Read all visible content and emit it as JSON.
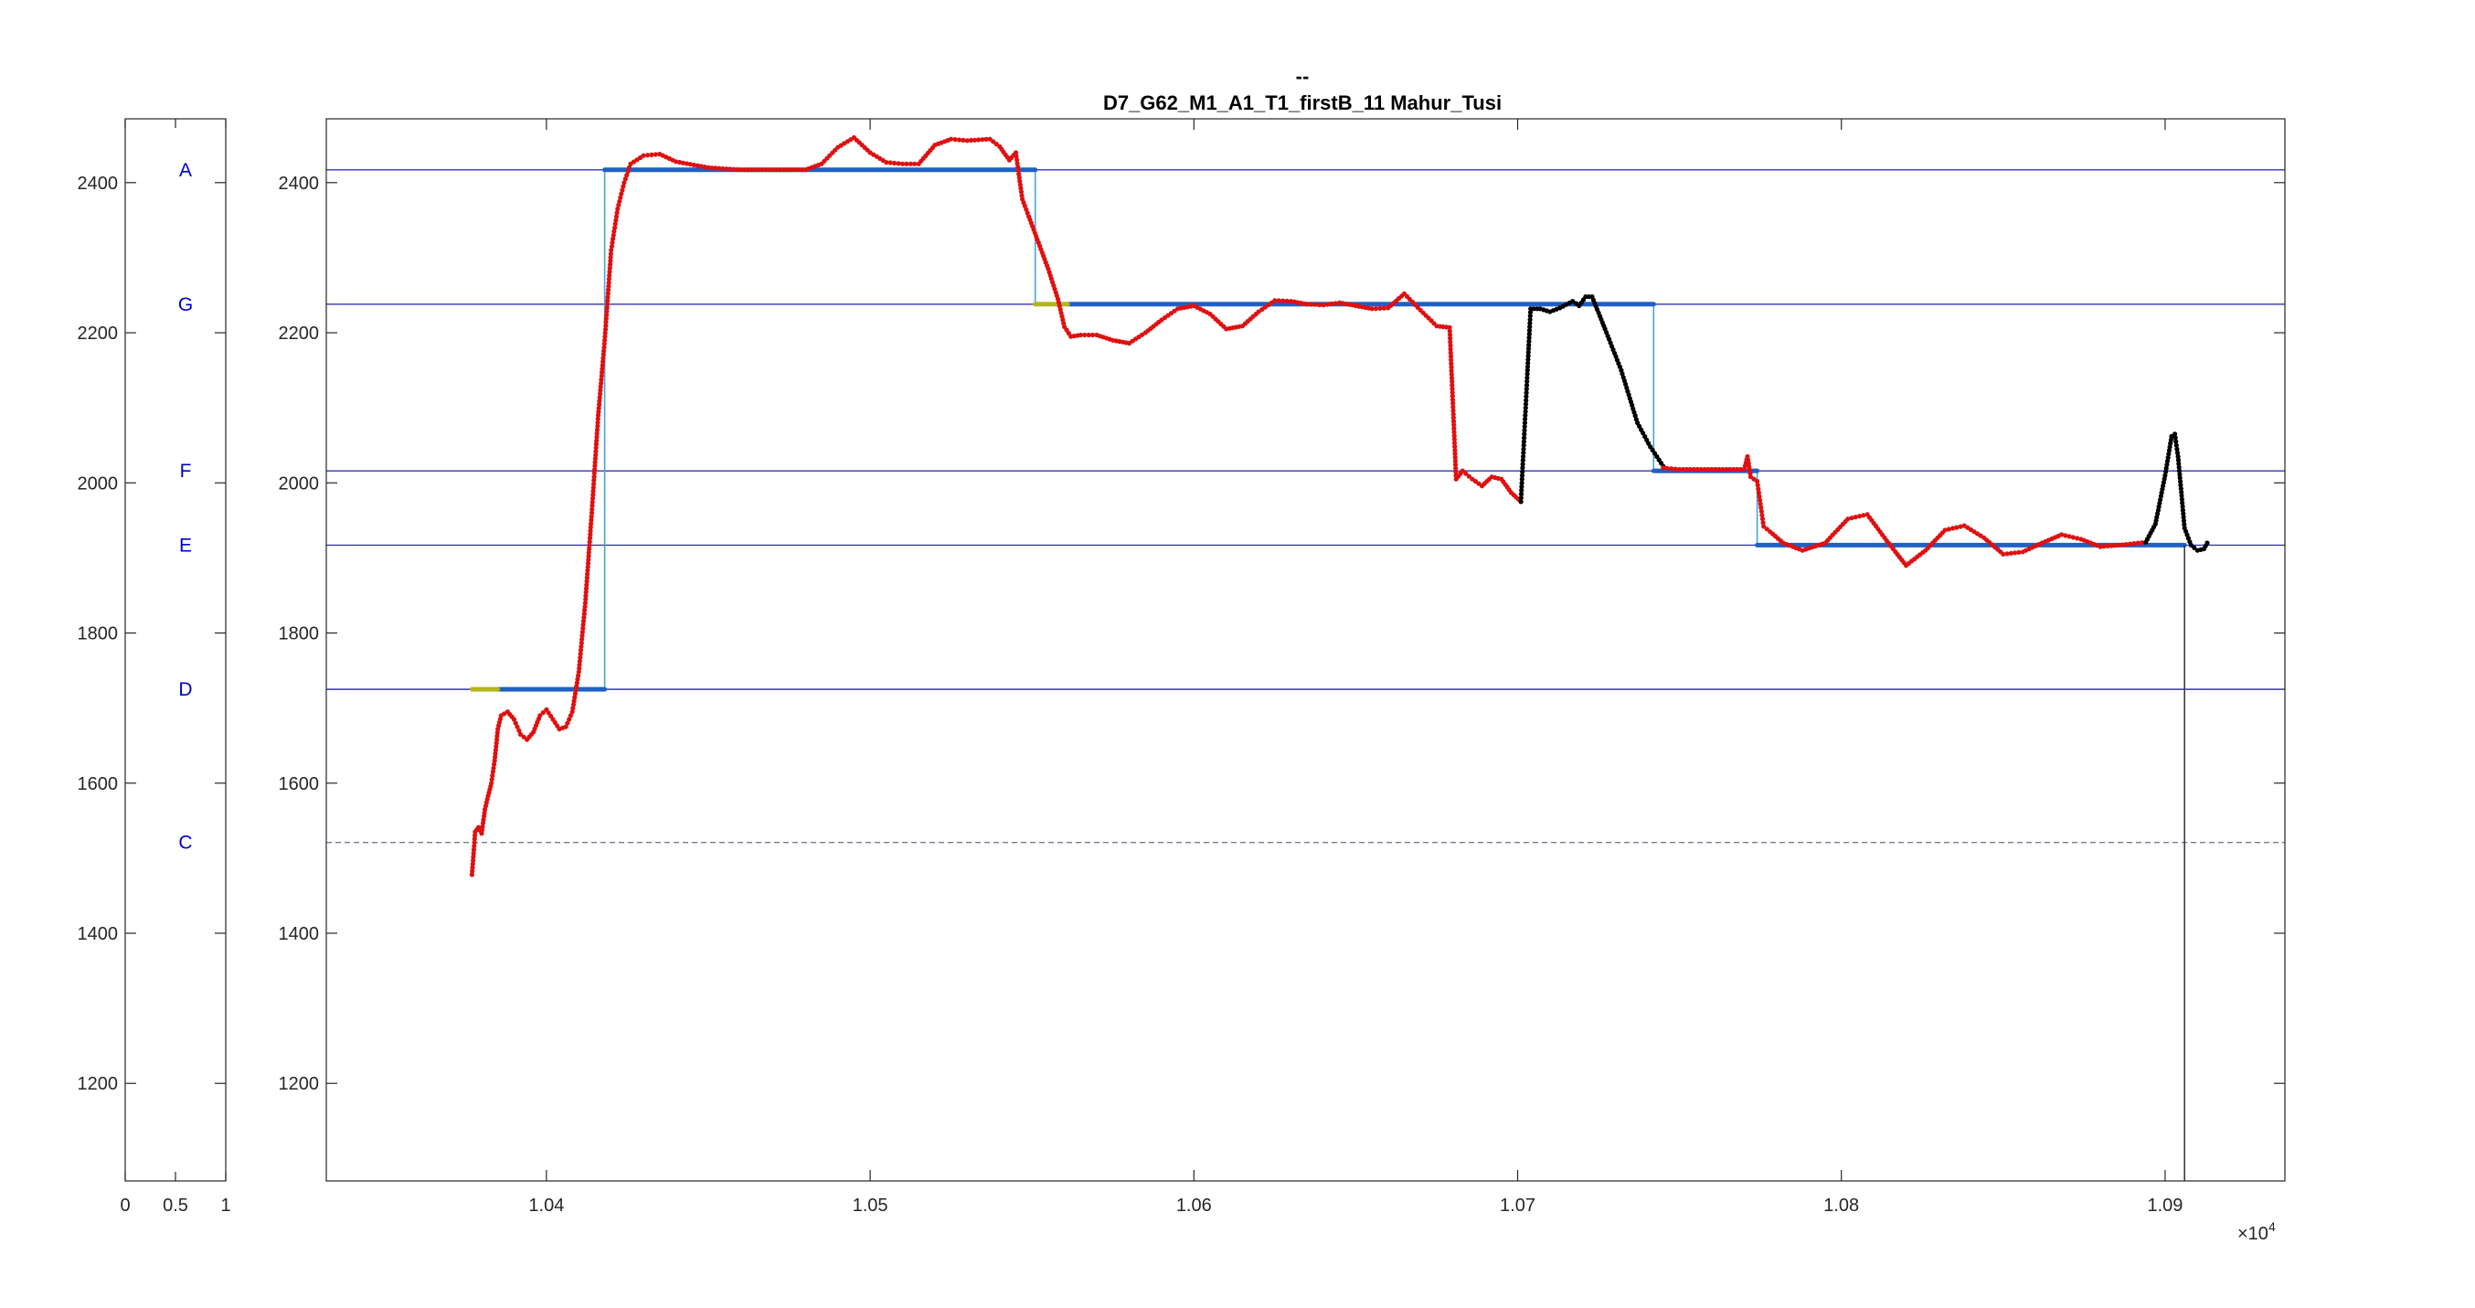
{
  "chart_data": {
    "type": "line",
    "title_line1": "--",
    "title_line2": "D7_G62_M1_A1_T1_firstB_11 Mahur_Tusi",
    "xlabel": "",
    "ylabel": "",
    "x_exponent_label": "×10",
    "x_exponent_power": "4",
    "xlim": [
      10332,
      10937
    ],
    "ylim": [
      1070,
      2485
    ],
    "xtick_labels": [
      "1.04",
      "1.05",
      "1.06",
      "1.07",
      "1.08",
      "1.09"
    ],
    "xtick_values": [
      10400,
      10500,
      10600,
      10700,
      10800,
      10900
    ],
    "ytick_labels": [
      "1200",
      "1400",
      "1600",
      "1800",
      "2000",
      "2200",
      "2400"
    ],
    "ytick_values": [
      1200,
      1400,
      1600,
      1800,
      2000,
      2200,
      2400
    ],
    "side_panel": {
      "xlim": [
        0,
        1
      ],
      "xtick_labels": [
        "0",
        "0.5",
        "1"
      ],
      "xtick_values": [
        0,
        0.5,
        1
      ]
    },
    "reference_lines": [
      {
        "note": "A",
        "y": 2417
      },
      {
        "note": "G",
        "y": 2238
      },
      {
        "note": "F",
        "y": 2016
      },
      {
        "note": "E",
        "y": 1917
      },
      {
        "note": "D",
        "y": 1725
      },
      {
        "note": "C",
        "y": 1521,
        "style": "dashed"
      }
    ],
    "grid": false,
    "legend": "none",
    "colors": {
      "reference": "#3333bb",
      "steps": "#1f60c4",
      "step_thin": "#4aa3d8",
      "step_alt": "#b5b51a",
      "pitch": "#e01010",
      "pitch_line": "#d07050",
      "pitch_unvoiced": "#000000"
    },
    "series": [
      {
        "role": "step",
        "color": "#4aa3d8",
        "values": [
          [
            10377,
            1725
          ],
          [
            10418,
            1725
          ],
          [
            10418,
            2417
          ],
          [
            10551,
            2417
          ],
          [
            10551,
            2238
          ],
          [
            10742,
            2238
          ],
          [
            10742,
            2016
          ],
          [
            10774,
            2016
          ],
          [
            10774,
            1917
          ],
          [
            10906,
            1917
          ],
          [
            10906,
            1070
          ]
        ]
      },
      {
        "role": "step-bold",
        "color": "#1f60c4",
        "segments": [
          [
            [
              10385,
              1725
            ],
            [
              10418,
              1725
            ]
          ],
          [
            [
              10418,
              2417
            ],
            [
              10551,
              2417
            ]
          ],
          [
            [
              10561,
              2238
            ],
            [
              10742,
              2238
            ]
          ],
          [
            [
              10742,
              2016
            ],
            [
              10774,
              2016
            ]
          ],
          [
            [
              10774,
              1917
            ],
            [
              10906,
              1917
            ]
          ]
        ]
      },
      {
        "role": "step-alt",
        "color": "#b5b51a",
        "segments": [
          [
            [
              10377,
              1725
            ],
            [
              10385,
              1725
            ]
          ],
          [
            [
              10551,
              2238
            ],
            [
              10561,
              2238
            ]
          ]
        ]
      },
      {
        "role": "pitch",
        "color": "#e01010",
        "values": [
          [
            10377,
            1478
          ],
          [
            10378,
            1535
          ],
          [
            10379,
            1541
          ],
          [
            10380,
            1533
          ],
          [
            10381,
            1565
          ],
          [
            10382,
            1583
          ],
          [
            10383,
            1600
          ],
          [
            10384,
            1630
          ],
          [
            10385,
            1672
          ],
          [
            10386,
            1690
          ],
          [
            10388,
            1695
          ],
          [
            10390,
            1685
          ],
          [
            10392,
            1665
          ],
          [
            10394,
            1658
          ],
          [
            10396,
            1668
          ],
          [
            10398,
            1690
          ],
          [
            10400,
            1698
          ],
          [
            10402,
            1685
          ],
          [
            10404,
            1672
          ],
          [
            10406,
            1675
          ],
          [
            10408,
            1695
          ],
          [
            10410,
            1748
          ],
          [
            10412,
            1840
          ],
          [
            10414,
            1960
          ],
          [
            10416,
            2090
          ],
          [
            10418,
            2190
          ],
          [
            10420,
            2310
          ],
          [
            10422,
            2365
          ],
          [
            10424,
            2400
          ],
          [
            10426,
            2425
          ],
          [
            10430,
            2436
          ],
          [
            10435,
            2438
          ],
          [
            10440,
            2428
          ],
          [
            10450,
            2420
          ],
          [
            10460,
            2417
          ],
          [
            10470,
            2417
          ],
          [
            10480,
            2417
          ],
          [
            10485,
            2425
          ],
          [
            10490,
            2447
          ],
          [
            10495,
            2460
          ],
          [
            10500,
            2440
          ],
          [
            10505,
            2427
          ],
          [
            10510,
            2425
          ],
          [
            10515,
            2425
          ],
          [
            10520,
            2450
          ],
          [
            10525,
            2458
          ],
          [
            10530,
            2456
          ],
          [
            10537,
            2458
          ],
          [
            10540,
            2448
          ],
          [
            10543,
            2430
          ],
          [
            10545,
            2440
          ],
          [
            10547,
            2378
          ],
          [
            10549,
            2355
          ],
          [
            10552,
            2320
          ],
          [
            10555,
            2285
          ],
          [
            10558,
            2245
          ],
          [
            10560,
            2208
          ],
          [
            10562,
            2195
          ],
          [
            10565,
            2197
          ],
          [
            10570,
            2197
          ],
          [
            10575,
            2190
          ],
          [
            10580,
            2186
          ],
          [
            10585,
            2200
          ],
          [
            10590,
            2217
          ],
          [
            10595,
            2232
          ],
          [
            10600,
            2236
          ],
          [
            10605,
            2225
          ],
          [
            10610,
            2205
          ],
          [
            10615,
            2209
          ],
          [
            10620,
            2228
          ],
          [
            10625,
            2243
          ],
          [
            10630,
            2242
          ],
          [
            10635,
            2238
          ],
          [
            10640,
            2237
          ],
          [
            10645,
            2240
          ],
          [
            10650,
            2236
          ],
          [
            10655,
            2232
          ],
          [
            10660,
            2233
          ],
          [
            10665,
            2252
          ],
          [
            10670,
            2230
          ],
          [
            10675,
            2209
          ],
          [
            10679,
            2207
          ],
          [
            10681,
            2005
          ],
          [
            10683,
            2016
          ],
          [
            10686,
            2005
          ],
          [
            10689,
            1996
          ],
          [
            10692,
            2008
          ],
          [
            10695,
            2005
          ],
          [
            10698,
            1987
          ],
          [
            10701,
            1975
          ]
        ]
      },
      {
        "role": "pitch-unvoiced",
        "color": "#000000",
        "values": [
          [
            10701,
            1975
          ],
          [
            10702,
            2060
          ],
          [
            10703,
            2145
          ],
          [
            10704,
            2232
          ],
          [
            10707,
            2232
          ],
          [
            10710,
            2228
          ],
          [
            10713,
            2233
          ],
          [
            10717,
            2242
          ],
          [
            10719,
            2236
          ],
          [
            10721,
            2248
          ],
          [
            10723,
            2248
          ],
          [
            10727,
            2205
          ],
          [
            10732,
            2150
          ],
          [
            10737,
            2080
          ],
          [
            10741,
            2048
          ],
          [
            10745,
            2022
          ]
        ]
      },
      {
        "role": "pitch",
        "color": "#e01010",
        "values": [
          [
            10745,
            2020
          ],
          [
            10750,
            2018
          ],
          [
            10760,
            2018
          ],
          [
            10770,
            2018
          ],
          [
            10771,
            2035
          ],
          [
            10772,
            2008
          ],
          [
            10774,
            2002
          ],
          [
            10776,
            1942
          ],
          [
            10778,
            1935
          ],
          [
            10782,
            1920
          ],
          [
            10788,
            1910
          ],
          [
            10795,
            1920
          ],
          [
            10802,
            1952
          ],
          [
            10808,
            1958
          ],
          [
            10814,
            1923
          ],
          [
            10820,
            1890
          ],
          [
            10826,
            1910
          ],
          [
            10832,
            1937
          ],
          [
            10838,
            1943
          ],
          [
            10844,
            1927
          ],
          [
            10850,
            1905
          ],
          [
            10856,
            1908
          ],
          [
            10862,
            1920
          ],
          [
            10868,
            1931
          ],
          [
            10874,
            1925
          ],
          [
            10880,
            1915
          ],
          [
            10888,
            1918
          ],
          [
            10894,
            1921
          ]
        ]
      },
      {
        "role": "pitch-unvoiced",
        "color": "#000000",
        "values": [
          [
            10894,
            1921
          ],
          [
            10897,
            1945
          ],
          [
            10900,
            2010
          ],
          [
            10902,
            2062
          ],
          [
            10903,
            2065
          ],
          [
            10904,
            2035
          ],
          [
            10906,
            1940
          ],
          [
            10908,
            1917
          ],
          [
            10910,
            1910
          ],
          [
            10912,
            1912
          ],
          [
            10913,
            1920
          ]
        ]
      }
    ]
  }
}
